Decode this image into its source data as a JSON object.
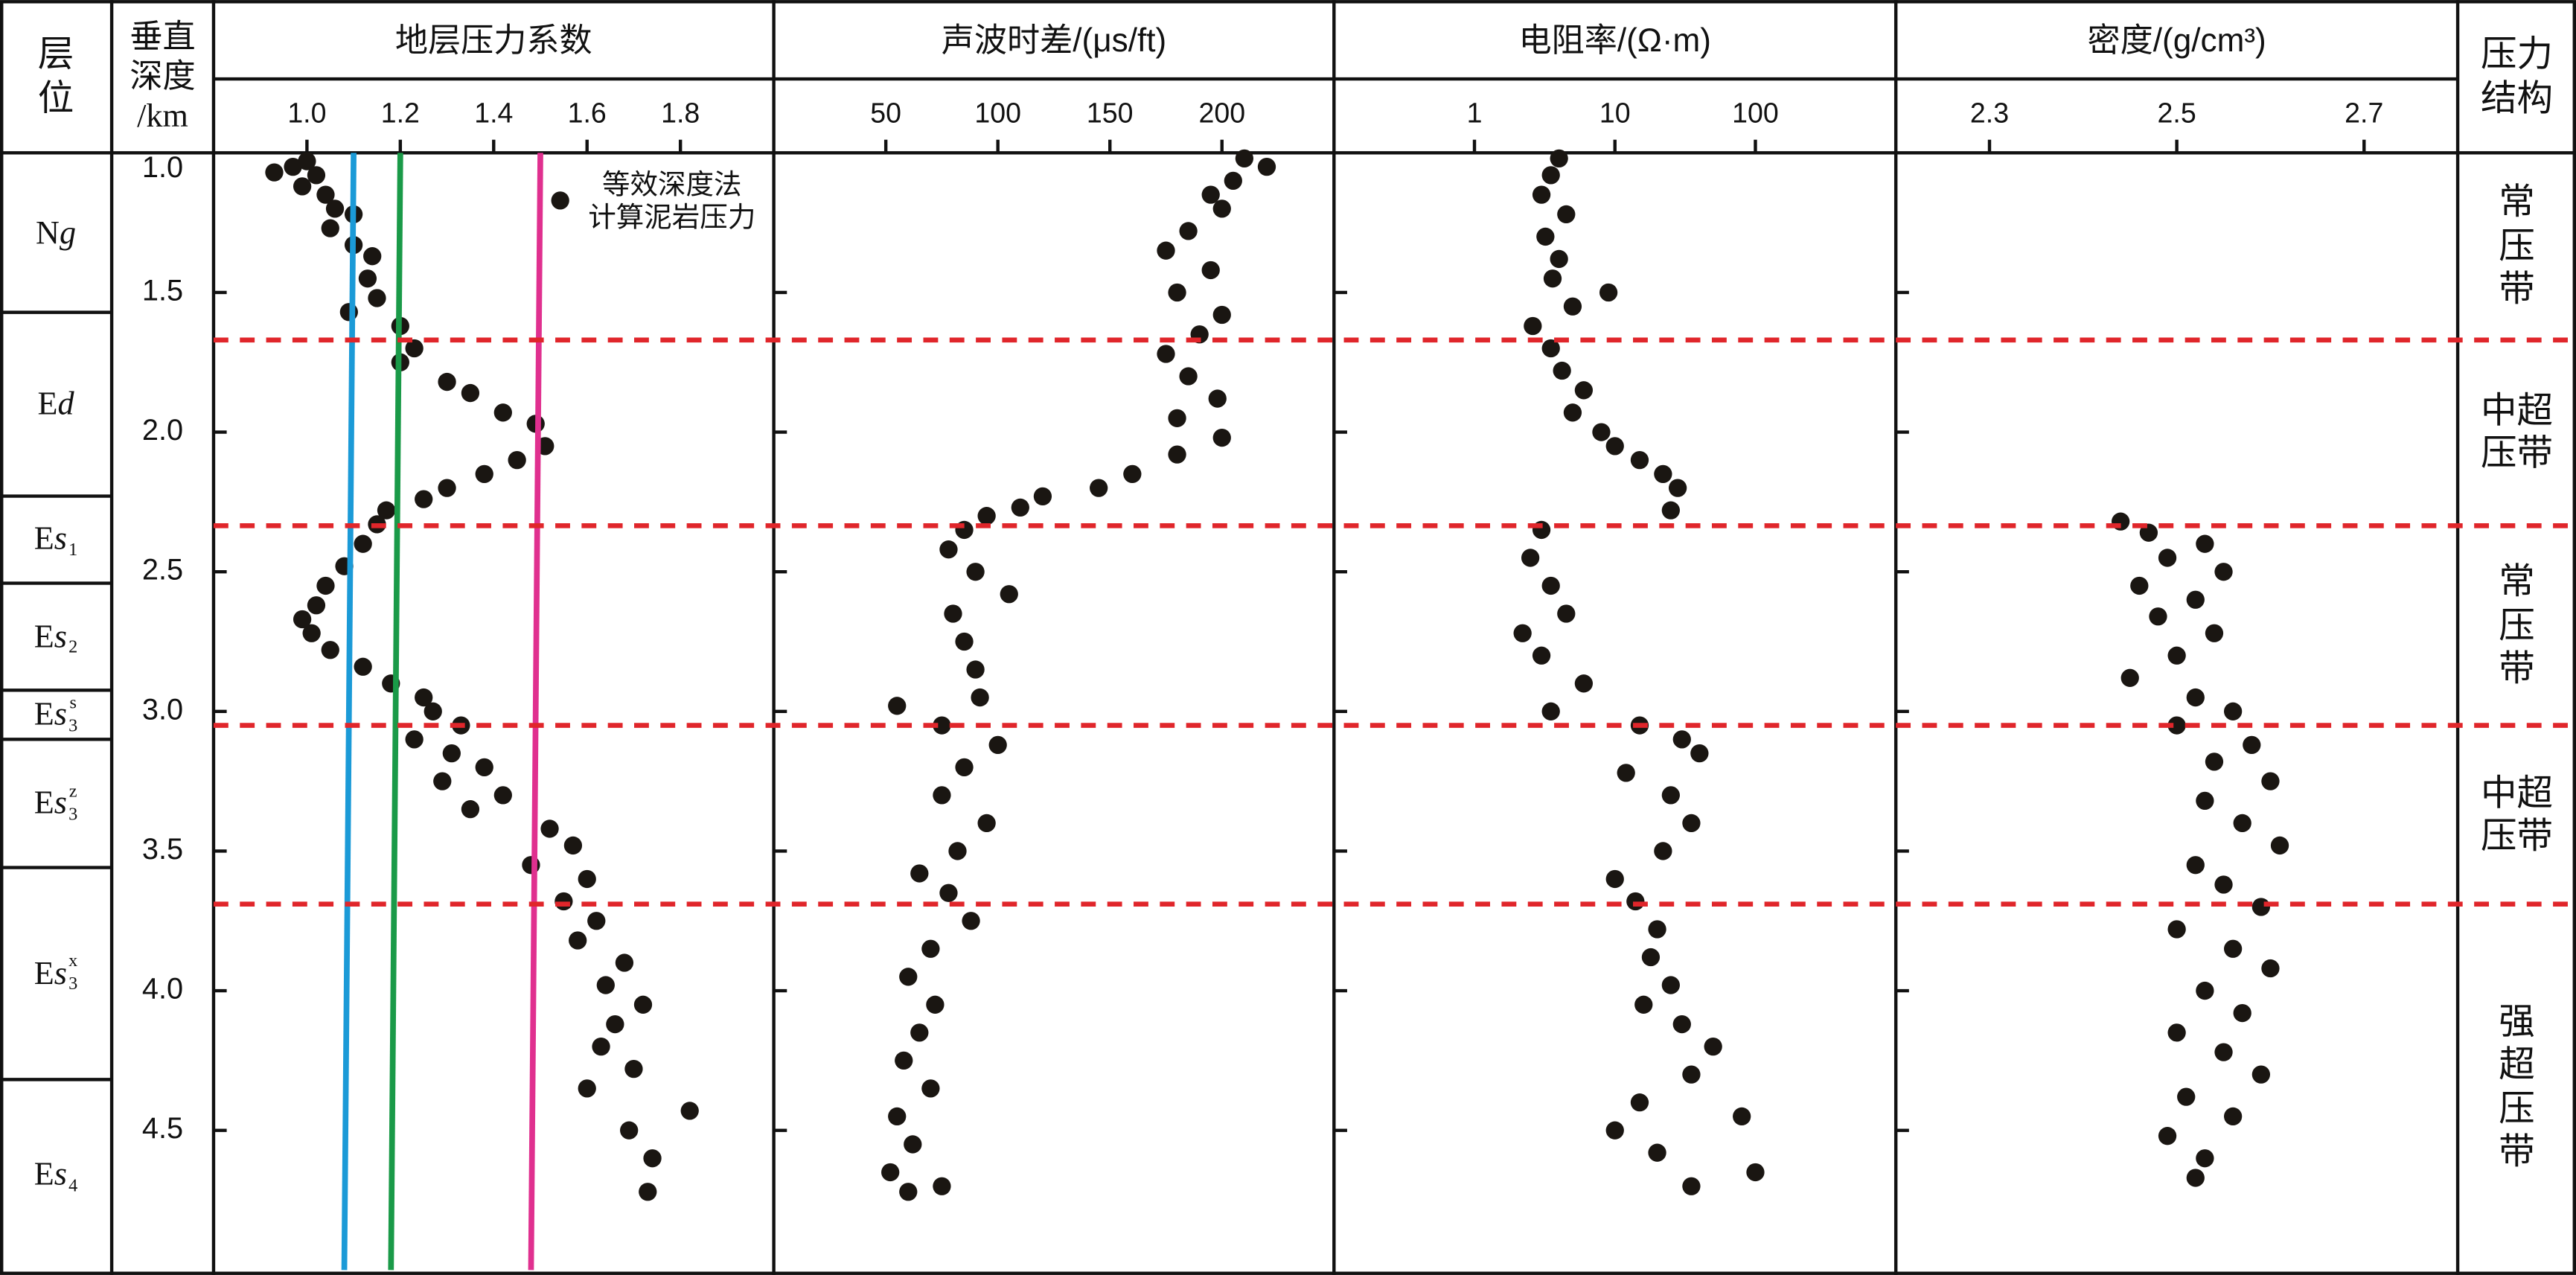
{
  "header": {
    "strata": "层\n位",
    "depth": "垂直\n深度\n/km",
    "pressure": "压力\n结构"
  },
  "depth_axis": {
    "ylim": [
      1,
      5
    ],
    "inverted": true,
    "yticks": [
      {
        "value": 1,
        "label": "1.0"
      },
      {
        "value": 1.5,
        "label": "1.5"
      },
      {
        "value": 2,
        "label": "2.0"
      },
      {
        "value": 2.5,
        "label": "2.5"
      },
      {
        "value": 3,
        "label": "3.0"
      },
      {
        "value": 3.5,
        "label": "3.5"
      },
      {
        "value": 4,
        "label": "4.0"
      },
      {
        "value": 4.5,
        "label": "4.5"
      }
    ]
  },
  "strata": [
    {
      "roman": "N",
      "italic": "g",
      "base": 1.571
    },
    {
      "roman": "E",
      "italic": "d",
      "base": 2.229
    },
    {
      "roman": "E",
      "italic": "s",
      "sub": "1",
      "base": 2.541
    },
    {
      "roman": "E",
      "italic": "s",
      "sub": "2",
      "base": 2.924
    },
    {
      "roman": "E",
      "italic": "s",
      "sub": "3",
      "sup": "s",
      "base": 3.1
    },
    {
      "roman": "E",
      "italic": "s",
      "sub": "3",
      "sup": "z",
      "base": 3.559
    },
    {
      "roman": "E",
      "italic": "s",
      "sub": "3",
      "sup": "x",
      "base": 4.318
    },
    {
      "roman": "E",
      "italic": "s",
      "sub": "4"
    }
  ],
  "pressure_zones": {
    "color": "#e0262b",
    "boundaries": [
      1.67,
      2.335,
      3.05,
      3.69
    ],
    "labels": [
      "常\n压\n带",
      "中超\n压带",
      "常\n压\n带",
      "中超\n压带",
      "强\n超\n压\n带"
    ]
  },
  "chart_data": [
    {
      "type": "scatter",
      "title": "地层压力系数",
      "xlim": [
        0.8,
        2.0
      ],
      "xticks": [
        {
          "value": 1,
          "label": "1.0"
        },
        1.2,
        1.4,
        1.6,
        1.8
      ],
      "legend": "upper right",
      "series": [
        {
          "type": "scatter",
          "name": "等效深度法\n计算泥岩压力",
          "color": "#1a1612",
          "x": [
            0.93,
            0.97,
            1.0,
            1.02,
            0.99,
            1.04,
            1.06,
            1.1,
            1.05,
            1.1,
            1.14,
            1.13,
            1.15,
            1.09,
            1.2,
            1.23,
            1.2,
            1.3,
            1.35,
            1.42,
            1.49,
            1.51,
            1.45,
            1.38,
            1.3,
            1.25,
            1.17,
            1.15,
            1.12,
            1.08,
            1.04,
            1.02,
            0.99,
            1.01,
            1.05,
            1.12,
            1.18,
            1.25,
            1.27,
            1.33,
            1.23,
            1.31,
            1.38,
            1.29,
            1.42,
            1.35,
            1.52,
            1.57,
            1.48,
            1.6,
            1.55,
            1.62,
            1.58,
            1.68,
            1.64,
            1.72,
            1.66,
            1.63,
            1.7,
            1.6,
            1.82,
            1.69,
            1.74,
            1.73
          ],
          "values": [
            1.07,
            1.05,
            1.03,
            1.08,
            1.12,
            1.15,
            1.2,
            1.22,
            1.27,
            1.33,
            1.37,
            1.45,
            1.52,
            1.57,
            1.62,
            1.7,
            1.75,
            1.82,
            1.86,
            1.93,
            1.97,
            2.05,
            2.1,
            2.15,
            2.2,
            2.24,
            2.28,
            2.33,
            2.4,
            2.48,
            2.55,
            2.62,
            2.67,
            2.72,
            2.78,
            2.84,
            2.9,
            2.95,
            3.0,
            3.05,
            3.1,
            3.15,
            3.2,
            3.25,
            3.3,
            3.35,
            3.42,
            3.48,
            3.55,
            3.6,
            3.68,
            3.75,
            3.82,
            3.9,
            3.98,
            4.05,
            4.12,
            4.2,
            4.28,
            4.35,
            4.43,
            4.5,
            4.6,
            4.72
          ]
        },
        {
          "type": "line",
          "color": "#1b9ad7",
          "x": [
            1.1,
            1.08
          ],
          "values": [
            1,
            5
          ]
        },
        {
          "type": "line",
          "color": "#1a9a48",
          "x": [
            1.2,
            1.18
          ],
          "values": [
            1,
            5
          ]
        },
        {
          "type": "line",
          "color": "#e0308f",
          "x": [
            1.5,
            1.48
          ],
          "values": [
            1,
            5
          ]
        }
      ]
    },
    {
      "type": "scatter",
      "title": "声波时差/(μs/ft)",
      "xlim": [
        0,
        250
      ],
      "xticks": [
        50,
        100,
        150,
        200
      ],
      "series": [
        {
          "type": "scatter",
          "color": "#1a1612",
          "x": [
            210,
            220,
            205,
            195,
            200,
            185,
            175,
            195,
            180,
            200,
            190,
            175,
            185,
            198,
            180,
            200,
            180,
            160,
            145,
            120,
            110,
            95,
            85,
            78,
            90,
            105,
            80,
            85,
            90,
            92,
            55,
            75,
            100,
            85,
            75,
            95,
            82,
            65,
            78,
            88,
            70,
            60,
            72,
            65,
            58,
            70,
            55,
            62,
            52,
            60,
            75
          ],
          "values": [
            1.02,
            1.05,
            1.1,
            1.15,
            1.2,
            1.28,
            1.35,
            1.42,
            1.5,
            1.58,
            1.65,
            1.72,
            1.8,
            1.88,
            1.95,
            2.02,
            2.08,
            2.15,
            2.2,
            2.23,
            2.27,
            2.3,
            2.35,
            2.42,
            2.5,
            2.58,
            2.65,
            2.75,
            2.85,
            2.95,
            2.98,
            3.05,
            3.12,
            3.2,
            3.3,
            3.4,
            3.5,
            3.58,
            3.65,
            3.75,
            3.85,
            3.95,
            4.05,
            4.15,
            4.25,
            4.35,
            4.45,
            4.55,
            4.65,
            4.72,
            4.7
          ]
        }
      ]
    },
    {
      "type": "scatter",
      "title": "电阻率/(Ω·m)",
      "log_x": true,
      "xlim": [
        0.1,
        1000
      ],
      "xticks": [
        1,
        10,
        100
      ],
      "series": [
        {
          "type": "scatter",
          "color": "#1a1612",
          "x": [
            4,
            3.5,
            3,
            4.5,
            3.2,
            4,
            3.6,
            9,
            5,
            2.6,
            3.5,
            4.2,
            6,
            5,
            8,
            10,
            15,
            22,
            28,
            25,
            3,
            2.5,
            3.5,
            4.5,
            2.2,
            3,
            6,
            3.5,
            15,
            30,
            40,
            12,
            25,
            35,
            22,
            10,
            14,
            20,
            18,
            25,
            16,
            30,
            50,
            35,
            15,
            10,
            20,
            100,
            35,
            80
          ],
          "values": [
            1.02,
            1.08,
            1.15,
            1.22,
            1.3,
            1.38,
            1.45,
            1.5,
            1.55,
            1.62,
            1.7,
            1.78,
            1.85,
            1.93,
            2.0,
            2.05,
            2.1,
            2.15,
            2.2,
            2.28,
            2.35,
            2.45,
            2.55,
            2.65,
            2.72,
            2.8,
            2.9,
            3.0,
            3.05,
            3.1,
            3.15,
            3.22,
            3.3,
            3.4,
            3.5,
            3.6,
            3.68,
            3.78,
            3.88,
            3.98,
            4.05,
            4.12,
            4.2,
            4.3,
            4.4,
            4.5,
            4.58,
            4.65,
            4.7,
            4.45
          ]
        }
      ]
    },
    {
      "type": "scatter",
      "title": "密度/(g/cm³)",
      "xlim": [
        2.2,
        2.8
      ],
      "xticks": [
        2.3,
        2.5,
        2.7
      ],
      "series": [
        {
          "type": "scatter",
          "color": "#1a1612",
          "x": [
            2.44,
            2.47,
            2.53,
            2.49,
            2.55,
            2.46,
            2.52,
            2.48,
            2.54,
            2.5,
            2.45,
            2.52,
            2.56,
            2.5,
            2.58,
            2.54,
            2.6,
            2.53,
            2.57,
            2.61,
            2.52,
            2.55,
            2.59,
            2.5,
            2.56,
            2.6,
            2.53,
            2.57,
            2.5,
            2.55,
            2.59,
            2.51,
            2.56,
            2.49,
            2.53,
            2.52
          ],
          "values": [
            2.32,
            2.36,
            2.4,
            2.45,
            2.5,
            2.55,
            2.6,
            2.66,
            2.72,
            2.8,
            2.88,
            2.95,
            3.0,
            3.05,
            3.12,
            3.18,
            3.25,
            3.32,
            3.4,
            3.48,
            3.55,
            3.62,
            3.7,
            3.78,
            3.85,
            3.92,
            4.0,
            4.08,
            4.15,
            4.22,
            4.3,
            4.38,
            4.45,
            4.52,
            4.6,
            4.67
          ]
        }
      ]
    }
  ]
}
